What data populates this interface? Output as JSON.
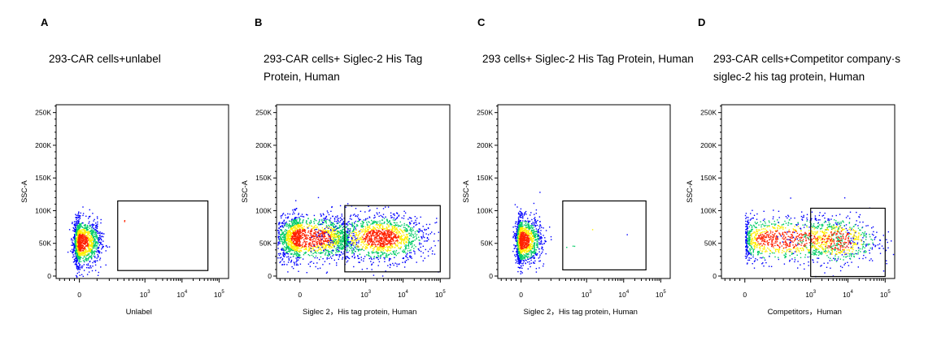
{
  "panels": [
    {
      "letter": "A",
      "title": "293-CAR cells+unlabel"
    },
    {
      "letter": "B",
      "title": "293-CAR cells+ Siglec-2 His Tag Protein, Human"
    },
    {
      "letter": "C",
      "title": "293 cells+ Siglec-2 His Tag Protein, Human"
    },
    {
      "letter": "D",
      "title": "293-CAR cells+Competitor company·s siglec-2 his tag protein, Human"
    }
  ],
  "colors": {
    "density_low": "#0000ff",
    "density_mid": "#00cc66",
    "density_high": "#ffee00",
    "density_peak": "#ff2200",
    "gate": "#000000",
    "axis": "#000000"
  },
  "chart_data": [
    {
      "type": "scatter",
      "panel": "A",
      "title": "",
      "xlabel": "Unlabel",
      "ylabel": "SSC-A",
      "x_scale": "biexponential",
      "ylim": [
        0,
        262144
      ],
      "y_ticks": [
        "0",
        "50K",
        "100K",
        "150K",
        "200K",
        "250K"
      ],
      "x_ticks": [
        "0",
        "10^3",
        "10^4",
        "10^5"
      ],
      "grid": false,
      "populations": [
        {
          "name": "",
          "x_center": 0,
          "x_spread": 60,
          "y_center": 55000,
          "y_spread": 17000,
          "n": 1400,
          "coloring": "density"
        },
        {
          "name": "",
          "x_center": 400,
          "x_spread": 50,
          "y_center": 88000,
          "y_spread": 2000,
          "n": 2,
          "coloring": "density"
        }
      ],
      "gate": {
        "x": [
          300,
          50000
        ],
        "y": [
          12000,
          117000
        ]
      }
    },
    {
      "type": "scatter",
      "panel": "B",
      "title": "",
      "xlabel": "Siglec 2，His tag protein, Human",
      "ylabel": "SSC-A",
      "x_scale": "biexponential",
      "ylim": [
        0,
        262144
      ],
      "y_ticks": [
        "0",
        "50K",
        "100K",
        "150K",
        "200K",
        "250K"
      ],
      "x_ticks": [
        "0",
        "10^3",
        "10^4",
        "10^5"
      ],
      "grid": false,
      "populations": [
        {
          "name": "",
          "x_center": 10,
          "x_spread": 250,
          "y_center": 62000,
          "y_spread": 17000,
          "n": 1800,
          "coloring": "density"
        },
        {
          "name": "",
          "x_center": 2500,
          "x_spread": 0.6,
          "y_center": 62000,
          "y_spread": 17000,
          "n": 1400,
          "coloring": "density"
        }
      ],
      "gate": {
        "x": [
          400,
          100000
        ],
        "y": [
          10000,
          110000
        ]
      }
    },
    {
      "type": "scatter",
      "panel": "C",
      "title": "",
      "xlabel": "Siglec 2，His tag protein, Human",
      "ylabel": "SSC-A",
      "x_scale": "biexponential",
      "ylim": [
        0,
        262144
      ],
      "y_ticks": [
        "0",
        "50K",
        "100K",
        "150K",
        "200K",
        "250K"
      ],
      "x_ticks": [
        "0",
        "10^3",
        "10^4",
        "10^5"
      ],
      "grid": false,
      "populations": [
        {
          "name": "",
          "x_center": 0,
          "x_spread": 55,
          "y_center": 58000,
          "y_spread": 17000,
          "n": 1400,
          "coloring": "density"
        },
        {
          "name": "",
          "x_center": 600,
          "x_spread": 0.5,
          "y_center": 70000,
          "y_spread": 15000,
          "n": 6,
          "coloring": "density"
        }
      ],
      "gate": {
        "x": [
          350,
          40000
        ],
        "y": [
          13000,
          117000
        ]
      }
    },
    {
      "type": "scatter",
      "panel": "D",
      "title": "",
      "xlabel": "Competitors，Human",
      "ylabel": "SSC-A",
      "x_scale": "biexponential",
      "ylim": [
        0,
        262144
      ],
      "y_ticks": [
        "0",
        "50K",
        "100K",
        "150K",
        "200K",
        "250K"
      ],
      "x_ticks": [
        "0",
        "10^3",
        "10^4",
        "10^5"
      ],
      "grid": false,
      "populations": [
        {
          "name": "",
          "x_center": 300,
          "x_spread": 0.9,
          "y_center": 60000,
          "y_spread": 17000,
          "n": 1100,
          "coloring": "density"
        },
        {
          "name": "",
          "x_center": 5000,
          "x_spread": 0.55,
          "y_center": 58000,
          "y_spread": 18000,
          "n": 500,
          "coloring": "density"
        }
      ],
      "gate": {
        "x": [
          1000,
          100000
        ],
        "y": [
          3000,
          106000
        ]
      }
    }
  ]
}
